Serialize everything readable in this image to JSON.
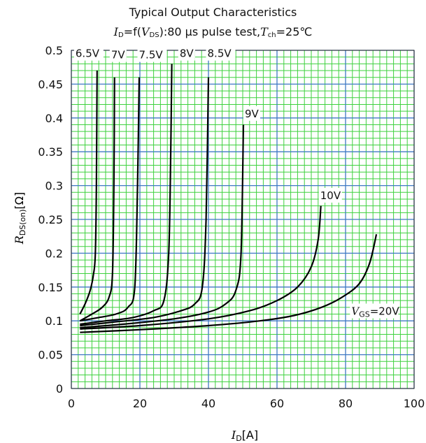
{
  "chart_data": {
    "type": "line",
    "title": "Typical Output Characteristics",
    "subtitle": {
      "id_sym": "I",
      "id_sub": "D",
      "middle": "=f(",
      "vds_sym": "V",
      "vds_sub": "DS",
      "rest": "):80 μs pulse test,",
      "t_sym": "T",
      "t_sub": "ch",
      "t_val": "=25℃"
    },
    "xlabel": {
      "sym": "I",
      "sub": "D",
      "unit": "[A]"
    },
    "ylabel": {
      "sym": "R",
      "sub": "DS(on)",
      "unit": "[Ω]"
    },
    "xlim": [
      0,
      100
    ],
    "ylim": [
      0,
      0.5
    ],
    "x_major_ticks": [
      0,
      20,
      40,
      60,
      80,
      100
    ],
    "y_major_ticks": [
      0,
      0.05,
      0.1,
      0.15,
      0.2,
      0.25,
      0.3,
      0.35,
      0.4,
      0.45,
      0.5
    ],
    "x_tick_labels": [
      "0",
      "20",
      "40",
      "60",
      "80",
      "100"
    ],
    "y_tick_labels": [
      "0",
      "0.05",
      "0.1",
      "0.15",
      "0.2",
      "0.25",
      "0.3",
      "0.35",
      "0.4",
      "0.45",
      "0.5"
    ],
    "grid": {
      "major": true,
      "minor": true,
      "major_color": "#3f78c4",
      "minor_color": "#3ed13e"
    },
    "line_color": "#000000",
    "series": [
      {
        "name": "6.5V",
        "x": [
          2.5,
          4,
          5.5,
          6.5,
          7.0,
          7.3,
          7.5
        ],
        "y": [
          0.11,
          0.125,
          0.145,
          0.17,
          0.2,
          0.3,
          0.47
        ]
      },
      {
        "name": "7V",
        "x": [
          2.5,
          6,
          9,
          11,
          12,
          12.4,
          12.6
        ],
        "y": [
          0.1,
          0.11,
          0.12,
          0.135,
          0.17,
          0.3,
          0.46
        ]
      },
      {
        "name": "7.5V",
        "x": [
          2.5,
          8,
          13,
          16.5,
          18.5,
          19.3,
          19.8
        ],
        "y": [
          0.1,
          0.105,
          0.11,
          0.12,
          0.15,
          0.3,
          0.46
        ]
      },
      {
        "name": "8V",
        "x": [
          2.5,
          10,
          18,
          24,
          27,
          28.4,
          29.0,
          29.3
        ],
        "y": [
          0.095,
          0.1,
          0.105,
          0.115,
          0.13,
          0.2,
          0.35,
          0.48
        ]
      },
      {
        "name": "8.5V",
        "x": [
          2.5,
          12,
          24,
          32,
          36,
          38.2,
          39.3,
          40
        ],
        "y": [
          0.093,
          0.098,
          0.105,
          0.115,
          0.125,
          0.15,
          0.25,
          0.46
        ]
      },
      {
        "name": "9V",
        "x": [
          2.5,
          15,
          30,
          40,
          45,
          48,
          49.5,
          50.2
        ],
        "y": [
          0.09,
          0.095,
          0.103,
          0.113,
          0.125,
          0.145,
          0.2,
          0.39
        ]
      },
      {
        "name": "10V",
        "x": [
          2.5,
          20,
          40,
          52,
          60,
          66,
          70,
          72,
          72.8
        ],
        "y": [
          0.088,
          0.093,
          0.103,
          0.115,
          0.13,
          0.15,
          0.18,
          0.22,
          0.27
        ]
      },
      {
        "name": "VGS=20V",
        "x": [
          2.5,
          20,
          40,
          55,
          65,
          73,
          79,
          84,
          87,
          89
        ],
        "y": [
          0.083,
          0.087,
          0.093,
          0.1,
          0.108,
          0.12,
          0.135,
          0.155,
          0.185,
          0.228
        ]
      }
    ],
    "curve_labels": [
      {
        "text": "6.5V"
      },
      {
        "text": "7V"
      },
      {
        "text": "7.5V"
      },
      {
        "text": "8V"
      },
      {
        "text": "8.5V"
      },
      {
        "text": "9V"
      },
      {
        "text": "10V"
      },
      {
        "text": "=20V",
        "sym": "V",
        "sub": "GS"
      }
    ]
  }
}
